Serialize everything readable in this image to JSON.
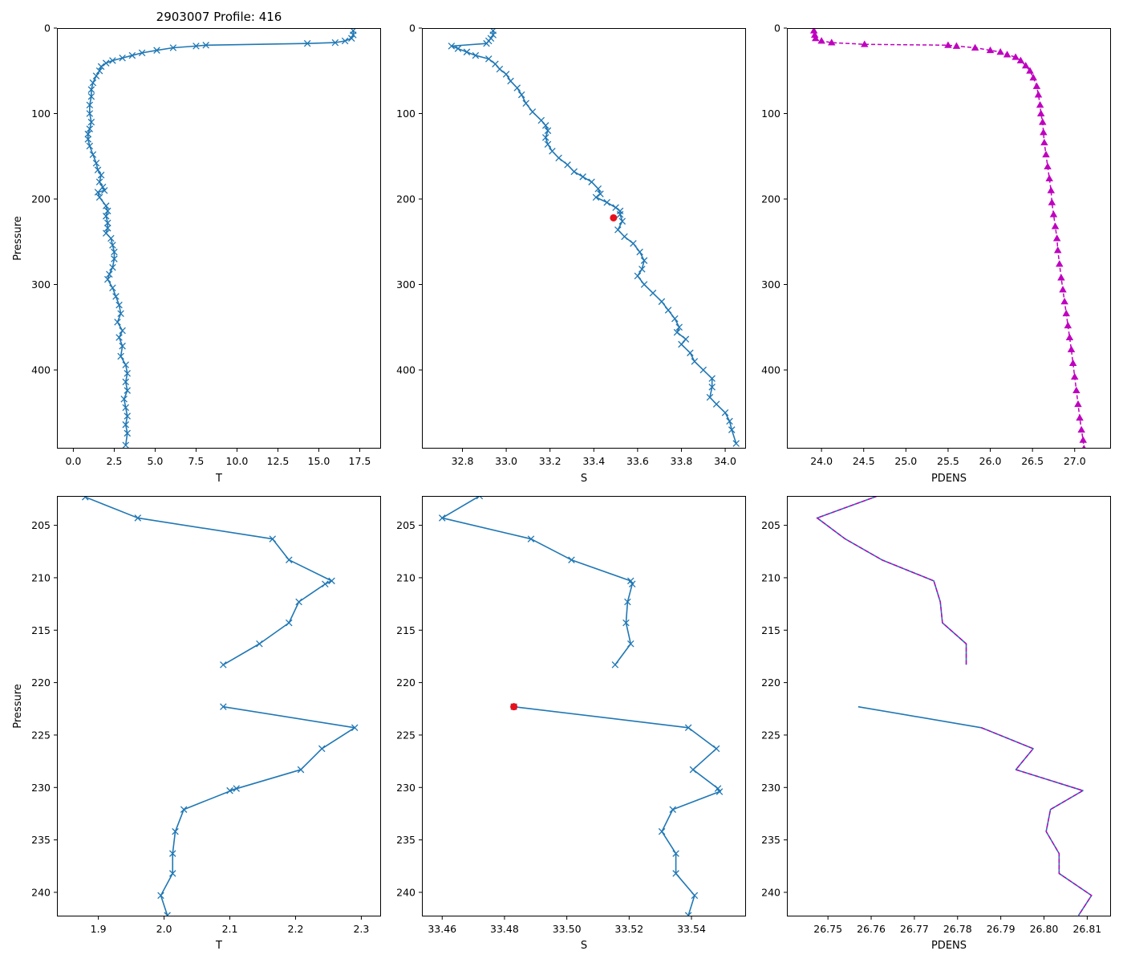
{
  "colors": {
    "series": "#1f77b4",
    "pdens": "#bf00bf",
    "flag": "#e8101a"
  },
  "chart_data": [
    {
      "type": "line",
      "id": "top-temperature",
      "title": "2903007 Profile: 416",
      "xlabel": "T",
      "ylabel": "Pressure",
      "xlim": [
        -1.0,
        18.8
      ],
      "ylim": [
        0,
        492
      ],
      "y_inverted": true,
      "xticks": [
        {
          "v": 0,
          "t": "0.0"
        },
        {
          "v": 2.5,
          "t": "2.5"
        },
        {
          "v": 5,
          "t": "5.0"
        },
        {
          "v": 7.5,
          "t": "7.5"
        },
        {
          "v": 10,
          "t": "10.0"
        },
        {
          "v": 12.5,
          "t": "12.5"
        },
        {
          "v": 15,
          "t": "15.0"
        },
        {
          "v": 17.5,
          "t": "17.5"
        }
      ],
      "yticks": [
        {
          "v": 0,
          "t": "0"
        },
        {
          "v": 100,
          "t": "100"
        },
        {
          "v": 200,
          "t": "200"
        },
        {
          "v": 300,
          "t": "300"
        },
        {
          "v": 400,
          "t": "400"
        }
      ],
      "marker": "x",
      "line_style": "solid",
      "line_color": "series",
      "marker_color": "series",
      "x": [
        17.1,
        17.1,
        17.0,
        16.6,
        16.0,
        14.3,
        8.1,
        7.5,
        6.1,
        5.1,
        4.2,
        3.6,
        3.0,
        2.4,
        2.0,
        1.7,
        1.6,
        1.4,
        1.2,
        1.1,
        1.1,
        1.0,
        1.0,
        1.1,
        1.0,
        0.9,
        0.9,
        1.0,
        1.2,
        1.4,
        1.5,
        1.7,
        1.6,
        1.8,
        1.9,
        1.5,
        1.6,
        2.0,
        2.1,
        2.0,
        2.1,
        2.1,
        2.0,
        2.3,
        2.4,
        2.5,
        2.5,
        2.4,
        2.2,
        2.1,
        2.4,
        2.6,
        2.8,
        2.9,
        2.7,
        3.0,
        2.8,
        3.0,
        2.9,
        3.2,
        3.3,
        3.2,
        3.3,
        3.1,
        3.2,
        3.3,
        3.2,
        3.3,
        3.2
      ],
      "y": [
        3,
        8,
        12,
        15,
        17,
        18,
        20,
        21,
        23,
        26,
        29,
        32,
        35,
        38,
        41,
        45,
        50,
        56,
        64,
        72,
        80,
        90,
        100,
        110,
        118,
        124,
        130,
        138,
        148,
        158,
        166,
        172,
        180,
        186,
        190,
        192,
        198,
        208,
        214,
        220,
        228,
        234,
        240,
        246,
        254,
        262,
        270,
        280,
        288,
        294,
        304,
        314,
        324,
        334,
        344,
        354,
        362,
        372,
        384,
        394,
        404,
        414,
        424,
        434,
        444,
        454,
        464,
        474,
        488
      ]
    },
    {
      "type": "line",
      "id": "top-salinity",
      "title": "",
      "xlabel": "S",
      "ylabel": "",
      "xlim": [
        32.615,
        34.095
      ],
      "ylim": [
        0,
        492
      ],
      "y_inverted": true,
      "xticks": [
        {
          "v": 32.8,
          "t": "32.8"
        },
        {
          "v": 33.0,
          "t": "33.0"
        },
        {
          "v": 33.2,
          "t": "33.2"
        },
        {
          "v": 33.4,
          "t": "33.4"
        },
        {
          "v": 33.6,
          "t": "33.6"
        },
        {
          "v": 33.8,
          "t": "33.8"
        },
        {
          "v": 34.0,
          "t": "34.0"
        }
      ],
      "yticks": [
        {
          "v": 0,
          "t": "0"
        },
        {
          "v": 100,
          "t": "100"
        },
        {
          "v": 200,
          "t": "200"
        },
        {
          "v": 300,
          "t": "300"
        },
        {
          "v": 400,
          "t": "400"
        }
      ],
      "marker": "x",
      "line_style": "solid",
      "line_color": "series",
      "marker_color": "series",
      "x": [
        32.94,
        32.94,
        32.93,
        32.92,
        32.91,
        32.75,
        32.78,
        32.82,
        32.86,
        32.92,
        32.95,
        32.97,
        33.0,
        33.02,
        33.05,
        33.07,
        33.09,
        33.12,
        33.16,
        33.18,
        33.19,
        33.18,
        33.19,
        33.21,
        33.24,
        33.28,
        33.31,
        33.35,
        33.39,
        33.42,
        33.43,
        33.41,
        33.46,
        33.5,
        33.52,
        33.52,
        33.53,
        33.51,
        33.54,
        33.58,
        33.61,
        33.63,
        33.62,
        33.6,
        33.63,
        33.67,
        33.71,
        33.74,
        33.77,
        33.79,
        33.78,
        33.82,
        33.8,
        33.84,
        33.86,
        33.9,
        33.94,
        33.94,
        33.93,
        33.96,
        34.0,
        34.02,
        34.03,
        34.05
      ],
      "y": [
        3,
        8,
        12,
        15,
        18,
        21,
        24,
        28,
        32,
        36,
        42,
        48,
        54,
        62,
        70,
        78,
        88,
        98,
        108,
        114,
        120,
        128,
        136,
        144,
        152,
        160,
        168,
        174,
        180,
        188,
        194,
        198,
        204,
        210,
        214,
        218,
        226,
        236,
        244,
        252,
        262,
        272,
        282,
        290,
        300,
        310,
        320,
        330,
        340,
        350,
        356,
        364,
        370,
        380,
        390,
        400,
        410,
        420,
        432,
        440,
        450,
        460,
        470,
        486
      ],
      "highlight": [
        {
          "x": 33.49,
          "y": 222
        }
      ]
    },
    {
      "type": "line",
      "id": "top-pdens",
      "title": "",
      "xlabel": "PDENS",
      "ylabel": "",
      "xlim": [
        23.59,
        27.43
      ],
      "ylim": [
        0,
        492
      ],
      "y_inverted": true,
      "xticks": [
        {
          "v": 24.0,
          "t": "24.0"
        },
        {
          "v": 24.5,
          "t": "24.5"
        },
        {
          "v": 25.0,
          "t": "25.0"
        },
        {
          "v": 25.5,
          "t": "25.5"
        },
        {
          "v": 26.0,
          "t": "26.0"
        },
        {
          "v": 26.5,
          "t": "26.5"
        },
        {
          "v": 27.0,
          "t": "27.0"
        }
      ],
      "yticks": [
        {
          "v": 0,
          "t": "0"
        },
        {
          "v": 100,
          "t": "100"
        },
        {
          "v": 200,
          "t": "200"
        },
        {
          "v": 300,
          "t": "300"
        },
        {
          "v": 400,
          "t": "400"
        }
      ],
      "marker": "triangle",
      "line_style": "dashed",
      "line_color": "pdens",
      "marker_color": "pdens",
      "x": [
        23.91,
        23.92,
        23.93,
        24.0,
        24.12,
        24.51,
        25.5,
        25.6,
        25.82,
        26.0,
        26.12,
        26.2,
        26.3,
        26.36,
        26.42,
        26.47,
        26.51,
        26.55,
        26.57,
        26.59,
        26.6,
        26.62,
        26.63,
        26.64,
        26.66,
        26.68,
        26.7,
        26.72,
        26.73,
        26.75,
        26.77,
        26.79,
        26.8,
        26.82,
        26.84,
        26.86,
        26.88,
        26.9,
        26.92,
        26.94,
        26.96,
        26.98,
        27.0,
        27.02,
        27.04,
        27.06,
        27.08,
        27.1,
        27.11
      ],
      "y": [
        3,
        8,
        12,
        15,
        17,
        19,
        20,
        21,
        23,
        26,
        28,
        31,
        34,
        38,
        44,
        50,
        58,
        68,
        78,
        90,
        100,
        110,
        122,
        134,
        148,
        162,
        176,
        190,
        204,
        218,
        232,
        246,
        260,
        276,
        292,
        306,
        320,
        334,
        348,
        362,
        376,
        392,
        408,
        424,
        440,
        456,
        470,
        482,
        492
      ]
    },
    {
      "type": "line",
      "id": "bottom-temperature",
      "title": "",
      "xlabel": "T",
      "ylabel": "Pressure",
      "xlim": [
        1.837,
        2.33
      ],
      "ylim": [
        202.2,
        242.3
      ],
      "y_inverted": true,
      "xticks": [
        {
          "v": 1.9,
          "t": "1.9"
        },
        {
          "v": 2.0,
          "t": "2.0"
        },
        {
          "v": 2.1,
          "t": "2.1"
        },
        {
          "v": 2.2,
          "t": "2.2"
        },
        {
          "v": 2.3,
          "t": "2.3"
        }
      ],
      "yticks": [
        {
          "v": 205,
          "t": "205"
        },
        {
          "v": 210,
          "t": "210"
        },
        {
          "v": 215,
          "t": "215"
        },
        {
          "v": 220,
          "t": "220"
        },
        {
          "v": 225,
          "t": "225"
        },
        {
          "v": 230,
          "t": "230"
        },
        {
          "v": 235,
          "t": "235"
        },
        {
          "v": 240,
          "t": "240"
        }
      ],
      "marker": "x",
      "line_style": "solid",
      "line_color": "series",
      "marker_color": "series",
      "segments": [
        {
          "x": [
            1.88,
            1.96,
            2.165,
            2.19,
            2.255,
            2.245,
            2.205,
            2.19,
            2.145,
            2.09
          ],
          "y": [
            202.3,
            204.3,
            206.3,
            208.3,
            210.3,
            210.6,
            212.3,
            214.3,
            216.3,
            218.3
          ]
        },
        {
          "x": [
            2.09,
            2.29,
            2.24,
            2.208,
            2.1,
            2.11,
            2.03,
            2.017,
            2.013,
            2.013,
            1.995,
            2.005
          ],
          "y": [
            222.3,
            224.3,
            226.3,
            228.3,
            230.3,
            230.1,
            232.1,
            234.2,
            236.3,
            238.2,
            240.3,
            242.2
          ]
        }
      ]
    },
    {
      "type": "line",
      "id": "bottom-salinity",
      "title": "",
      "xlabel": "S",
      "ylabel": "",
      "xlim": [
        33.4535,
        33.5575
      ],
      "ylim": [
        202.2,
        242.3
      ],
      "y_inverted": true,
      "xticks": [
        {
          "v": 33.46,
          "t": "33.46"
        },
        {
          "v": 33.48,
          "t": "33.48"
        },
        {
          "v": 33.5,
          "t": "33.50"
        },
        {
          "v": 33.52,
          "t": "33.52"
        },
        {
          "v": 33.54,
          "t": "33.54"
        }
      ],
      "yticks": [
        {
          "v": 205,
          "t": "205"
        },
        {
          "v": 210,
          "t": "210"
        },
        {
          "v": 215,
          "t": "215"
        },
        {
          "v": 220,
          "t": "220"
        },
        {
          "v": 225,
          "t": "225"
        },
        {
          "v": 230,
          "t": "230"
        },
        {
          "v": 235,
          "t": "235"
        },
        {
          "v": 240,
          "t": "240"
        }
      ],
      "marker": "x",
      "line_style": "solid",
      "line_color": "series",
      "marker_color": "series",
      "segments": [
        {
          "x": [
            33.472,
            33.46,
            33.4885,
            33.5015,
            33.5205,
            33.521,
            33.5195,
            33.519,
            33.5205,
            33.5155
          ],
          "y": [
            202.2,
            204.3,
            206.3,
            208.3,
            210.3,
            210.6,
            212.3,
            214.3,
            216.3,
            218.3
          ]
        },
        {
          "x": [
            33.483,
            33.539,
            33.548,
            33.5405,
            33.5485,
            33.549,
            33.534,
            33.5305,
            33.535,
            33.535,
            33.541,
            33.539
          ],
          "y": [
            222.3,
            224.3,
            226.3,
            228.3,
            230.1,
            230.4,
            232.1,
            234.2,
            236.3,
            238.2,
            240.3,
            242.2
          ]
        }
      ],
      "highlight": [
        {
          "x": 33.483,
          "y": 222.3
        }
      ]
    },
    {
      "type": "line",
      "id": "bottom-pdens",
      "title": "",
      "xlabel": "PDENS",
      "ylabel": "",
      "xlim": [
        26.7405,
        26.8155
      ],
      "ylim": [
        202.2,
        242.3
      ],
      "y_inverted": true,
      "xticks": [
        {
          "v": 26.75,
          "t": "26.75"
        },
        {
          "v": 26.76,
          "t": "26.76"
        },
        {
          "v": 26.77,
          "t": "26.77"
        },
        {
          "v": 26.78,
          "t": "26.78"
        },
        {
          "v": 26.79,
          "t": "26.79"
        },
        {
          "v": 26.8,
          "t": "26.80"
        },
        {
          "v": 26.81,
          "t": "26.81"
        }
      ],
      "yticks": [
        {
          "v": 205,
          "t": "205"
        },
        {
          "v": 210,
          "t": "210"
        },
        {
          "v": 215,
          "t": "215"
        },
        {
          "v": 220,
          "t": "220"
        },
        {
          "v": 225,
          "t": "225"
        },
        {
          "v": 230,
          "t": "230"
        },
        {
          "v": 235,
          "t": "235"
        },
        {
          "v": 240,
          "t": "240"
        }
      ],
      "marker": "none",
      "line_style": "solid",
      "line_color": "series",
      "overlay_dashed": "pdens",
      "segments": [
        {
          "x": [
            26.7615,
            26.7475,
            26.754,
            26.7625,
            26.7745,
            26.776,
            26.7765,
            26.782,
            26.782
          ],
          "y": [
            202.2,
            204.3,
            206.3,
            208.3,
            210.3,
            212.3,
            214.3,
            216.3,
            218.3
          ],
          "dashed_from": 0
        },
        {
          "x": [
            26.757,
            26.7855,
            26.7975,
            26.7935,
            26.809,
            26.8015,
            26.8005,
            26.8035,
            26.8035,
            26.811,
            26.808
          ],
          "y": [
            222.3,
            224.3,
            226.3,
            228.3,
            230.3,
            232.1,
            234.2,
            236.3,
            238.2,
            240.3,
            242.2
          ],
          "dashed_from": 1
        }
      ]
    }
  ]
}
